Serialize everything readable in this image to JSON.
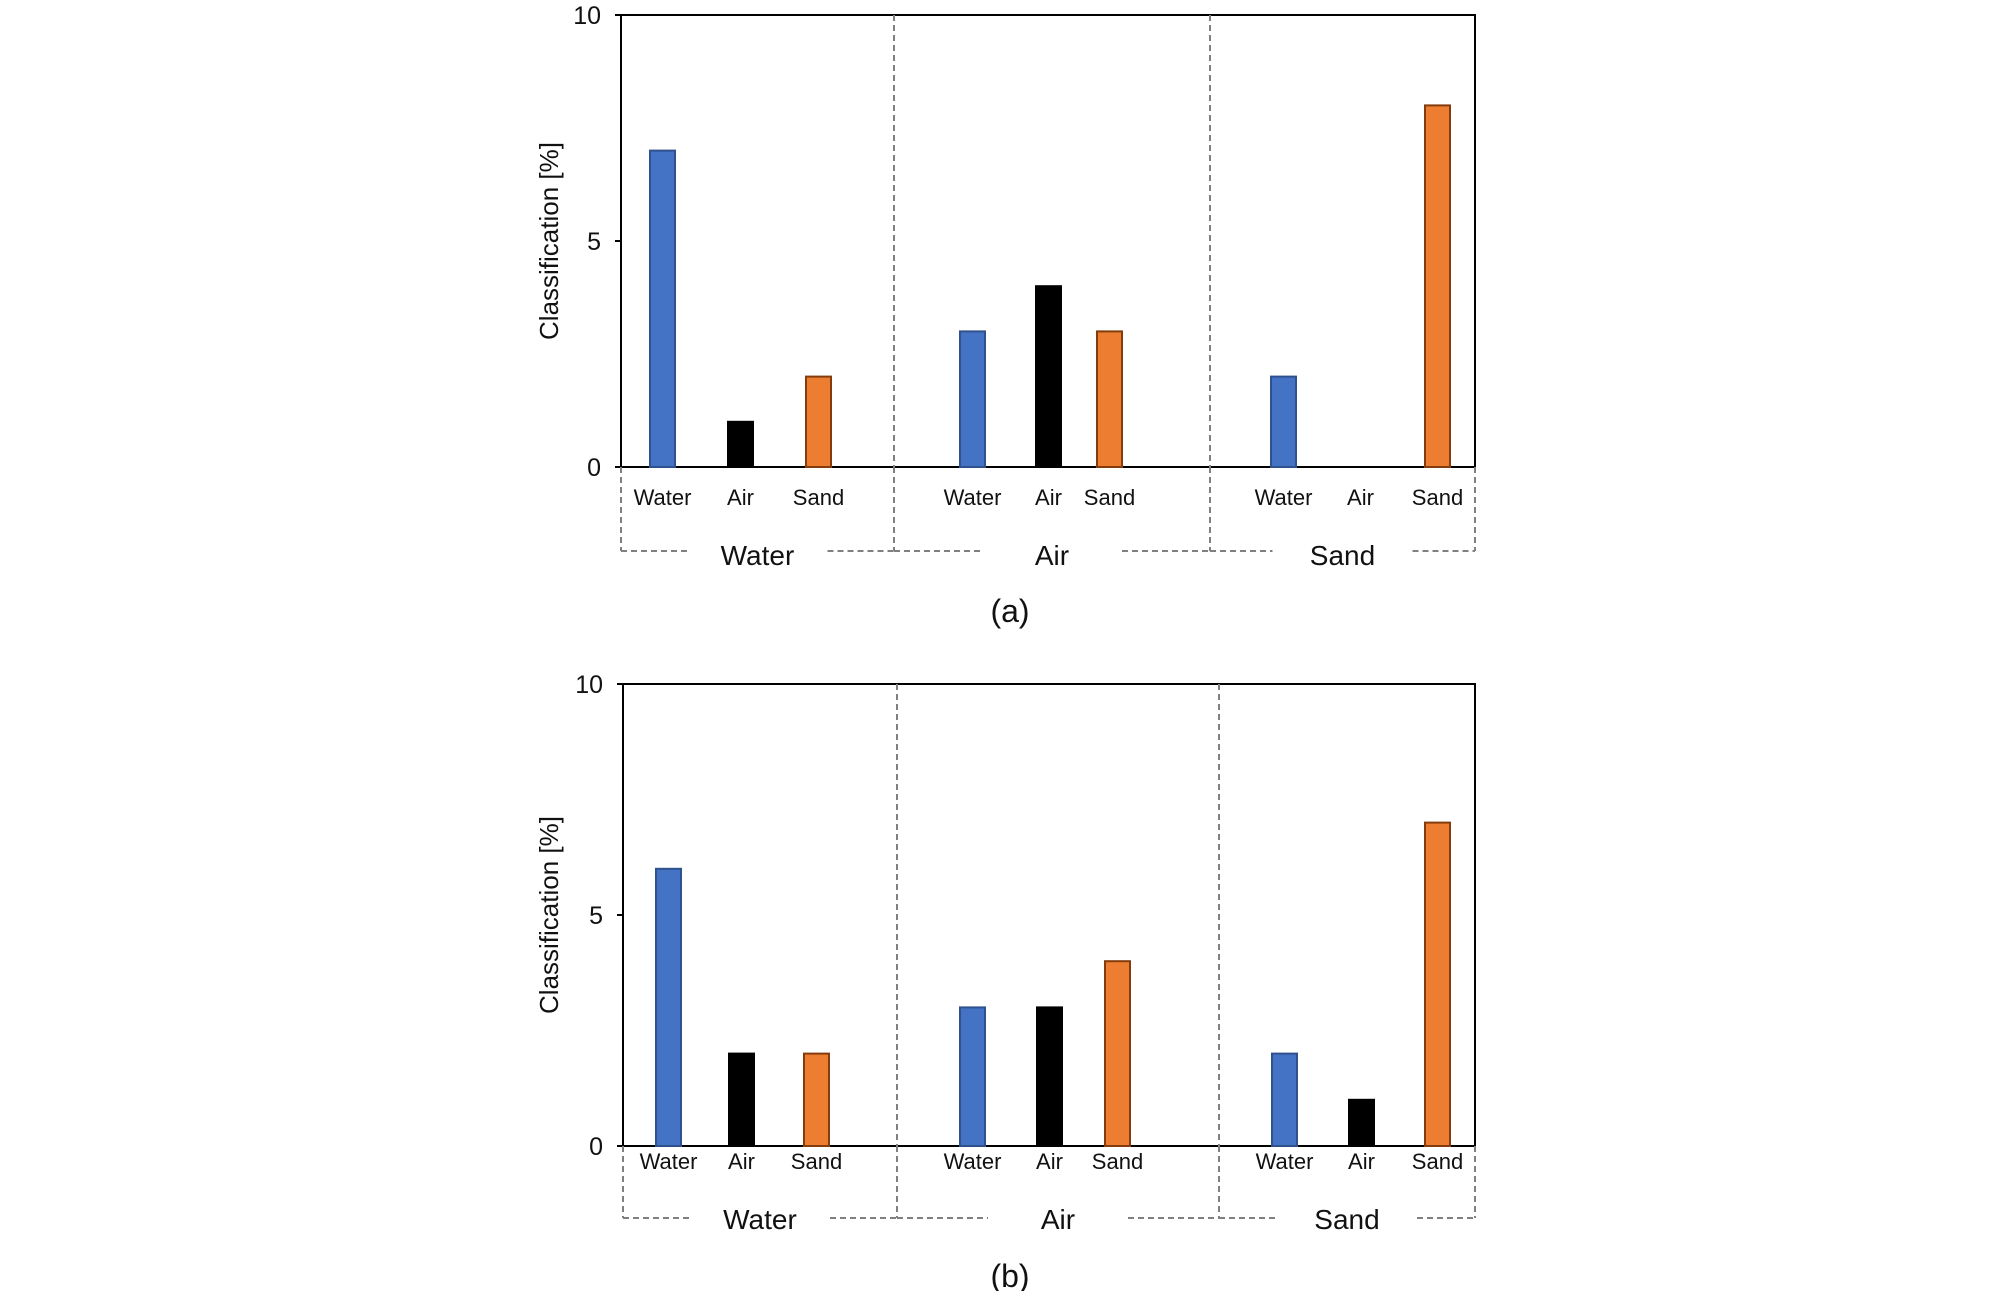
{
  "colors": {
    "water_fill": "#4472C4",
    "water_stroke": "#2F528F",
    "air_fill": "#000000",
    "air_stroke": "#000000",
    "sand_fill": "#ED7D31",
    "sand_stroke": "#843C0C",
    "divider": "#808080"
  },
  "chart_data": [
    {
      "type": "bar",
      "caption": "(a)",
      "ylabel": "Classification [%]",
      "ylim": [
        0,
        10
      ],
      "yticks": [
        "0",
        "5",
        "10"
      ],
      "groups": [
        "Water",
        "Air",
        "Sand"
      ],
      "categories": [
        "Water",
        "Air",
        "Sand"
      ],
      "series": [
        {
          "name": "Water",
          "values": [
            7,
            3,
            2
          ]
        },
        {
          "name": "Air",
          "values": [
            1,
            4,
            0
          ]
        },
        {
          "name": "Sand",
          "values": [
            2,
            3,
            8
          ]
        }
      ],
      "grid": false,
      "legend": "none"
    },
    {
      "type": "bar",
      "caption": "(b)",
      "ylabel": "Classification [%]",
      "ylim": [
        0,
        10
      ],
      "yticks": [
        "0",
        "5",
        "10"
      ],
      "groups": [
        "Water",
        "Air",
        "Sand"
      ],
      "categories": [
        "Water",
        "Air",
        "Sand"
      ],
      "series": [
        {
          "name": "Water",
          "values": [
            6,
            3,
            2
          ]
        },
        {
          "name": "Air",
          "values": [
            2,
            3,
            1
          ]
        },
        {
          "name": "Sand",
          "values": [
            2,
            4,
            7
          ]
        }
      ],
      "grid": false,
      "legend": "none"
    }
  ]
}
